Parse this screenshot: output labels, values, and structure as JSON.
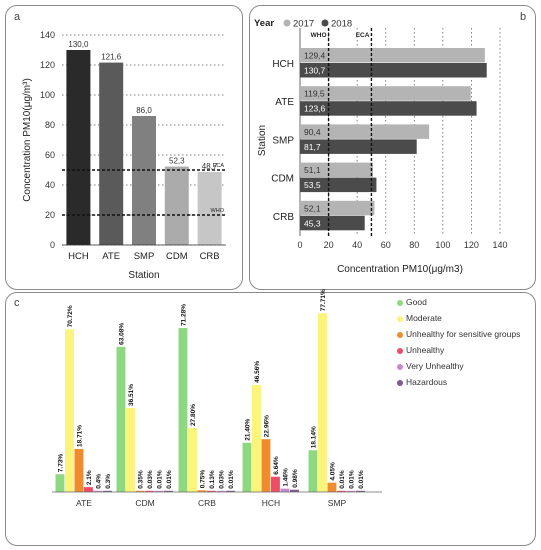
{
  "colors": {
    "hch_a": "#2a2a2a",
    "ate_a": "#5a5a5a",
    "smp_a": "#808080",
    "cdm_a": "#ababab",
    "crb_a": "#c6c6c6",
    "y2017": "#b4b4b4",
    "y2018": "#4b4b4b",
    "good": "#8ed881",
    "moderate": "#fbf47a",
    "usg": "#f08c2e",
    "unhealthy": "#f04c6a",
    "very_unhealthy": "#c58acb",
    "hazardous": "#7c5a8c"
  },
  "chart_data": [
    {
      "id": "a",
      "panel_label": "a",
      "type": "bar",
      "categories": [
        "HCH",
        "ATE",
        "SMP",
        "CDM",
        "CRB"
      ],
      "values": [
        130.0,
        121.6,
        86.0,
        52.3,
        48.7
      ],
      "value_labels": [
        "130,0",
        "121,6",
        "86,0",
        "52,3",
        "48,7"
      ],
      "xlabel": "Station",
      "ylabel": "Concentration PM10(μg/m³)",
      "ylim": [
        0,
        140
      ],
      "yticks": [
        "0",
        "20",
        "40",
        "60",
        "80",
        "100",
        "120",
        "140"
      ],
      "grid": true,
      "reference_lines": [
        {
          "label": "ECA",
          "value": 50
        },
        {
          "label": "WHO",
          "value": 20
        }
      ]
    },
    {
      "id": "b",
      "panel_label": "b",
      "type": "bar",
      "orientation": "horizontal",
      "legend_title": "Year",
      "legend_position": "top-left",
      "categories": [
        "HCH",
        "ATE",
        "SMP",
        "CDM",
        "CRB"
      ],
      "series": [
        {
          "name": "2017",
          "values": [
            129.4,
            119.5,
            90.4,
            51.1,
            52.1
          ],
          "value_labels": [
            "129,4",
            "119,5",
            "90,4",
            "51,1",
            "52,1"
          ]
        },
        {
          "name": "2018",
          "values": [
            130.7,
            123.6,
            81.7,
            53.5,
            45.3
          ],
          "value_labels": [
            "130,7",
            "123,6",
            "81,7",
            "53,5",
            "45,3"
          ]
        }
      ],
      "xlabel": "Concentration PM10(μg/m3)",
      "ylabel": "Station",
      "xlim": [
        0,
        140
      ],
      "xticks": [
        "0",
        "20",
        "40",
        "60",
        "80",
        "100",
        "120",
        "140"
      ],
      "grid": true,
      "reference_lines": [
        {
          "label": "WHO",
          "value": 20
        },
        {
          "label": "ECA",
          "value": 50
        }
      ]
    },
    {
      "id": "c",
      "panel_label": "c",
      "type": "bar",
      "categories": [
        "ATE",
        "CDM",
        "CRB",
        "HCH",
        "SMP"
      ],
      "legend_position": "top-right",
      "series": [
        {
          "name": "Good",
          "values": [
            7.73,
            63.08,
            71.28,
            21.4,
            18.14
          ],
          "value_labels": [
            "7.73%",
            "63.08%",
            "71.28%",
            "21.40%",
            "18.14%"
          ]
        },
        {
          "name": "Moderate",
          "values": [
            70.72,
            36.51,
            27.8,
            46.56,
            77.71
          ],
          "value_labels": [
            "70.72%",
            "36.51%",
            "27.80%",
            "46.56%",
            "77.71%"
          ]
        },
        {
          "name": "Unhealthy for sensitive groups",
          "values": [
            18.71,
            0.35,
            0.75,
            22.96,
            4.05
          ],
          "value_labels": [
            "18.71%",
            "0.35%",
            "0.75%",
            "22.96%",
            "4.05%"
          ]
        },
        {
          "name": "Unhealthy",
          "values": [
            2.1,
            0.03,
            0.13,
            6.64,
            0.01
          ],
          "value_labels": [
            "2.1%",
            "0.03%",
            "0.13%",
            "6.64%",
            "0.01%"
          ]
        },
        {
          "name": "Very Unhealthy",
          "values": [
            0.4,
            0.01,
            0.03,
            1.46,
            0.01
          ],
          "value_labels": [
            "0.4%",
            "0.01%",
            "0.03%",
            "1.46%",
            "0.01%"
          ]
        },
        {
          "name": "Hazardous",
          "values": [
            0.3,
            0.01,
            0.01,
            0.98,
            0.01
          ],
          "value_labels": [
            "0.3%",
            "0.01%",
            "0.01%",
            "0.98%",
            "0.01%"
          ]
        }
      ],
      "ylim": [
        0,
        80
      ]
    }
  ]
}
